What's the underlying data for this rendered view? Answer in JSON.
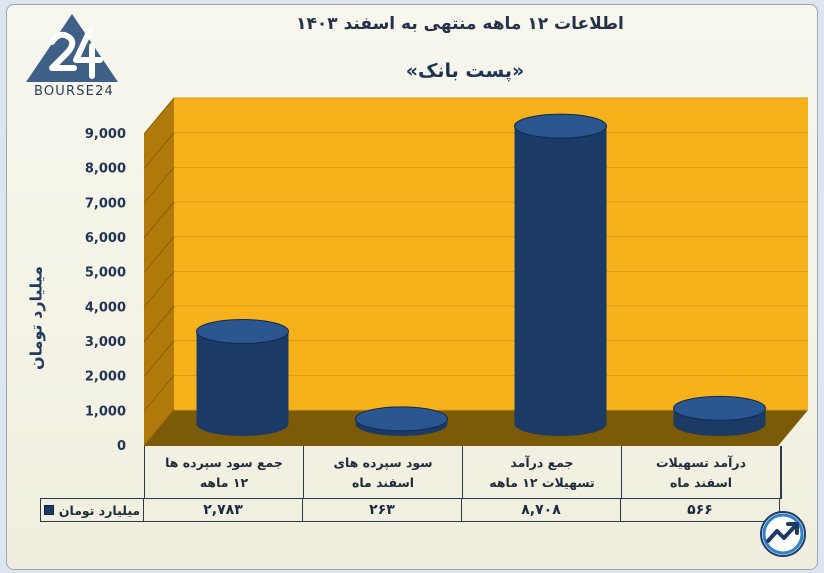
{
  "header": {
    "title": "اطلاعات ۱۲ ماهه منتهی به اسفند ۱۴۰۳",
    "subtitle": "«پست بانک»",
    "brand": "BOURSE24"
  },
  "colors": {
    "plot_background": "#f7b21b",
    "bar": "#1b3a66",
    "bar_top": "#2c5690",
    "floor": "#7b5a08"
  },
  "icons": {
    "logo": "bourse24-logo",
    "corner": "trend-arrow-icon"
  },
  "chart_data": {
    "type": "bar",
    "title": "اطلاعات ۱۲ ماهه منتهی به اسفند ۱۴۰۳",
    "subtitle": "«پست بانک»",
    "ylabel": "میلیارد تومان",
    "xlabel": "",
    "ylim": [
      0,
      9000
    ],
    "yticks": [
      0,
      1000,
      2000,
      3000,
      4000,
      5000,
      6000,
      7000,
      8000,
      9000
    ],
    "ytick_labels": [
      "0",
      "1,000",
      "2,000",
      "3,000",
      "4,000",
      "5,000",
      "6,000",
      "7,000",
      "8,000",
      "9,000"
    ],
    "categories": [
      "درآمد تسهیلات\nاسفند ماه",
      "جمع درآمد\nتسهیلات ۱۲ ماهه",
      "سود سپرده های\nاسفند ماه",
      "جمع سود سپرده ها\n۱۲ ماهه"
    ],
    "series": [
      {
        "name": "میلیارد تومان",
        "values": [
          566,
          8708,
          263,
          2783
        ],
        "value_labels": [
          "۵۶۶",
          "۸,۷۰۸",
          "۲۶۳",
          "۲,۷۸۳"
        ]
      }
    ],
    "grid": true,
    "legend": "bottom-left"
  }
}
